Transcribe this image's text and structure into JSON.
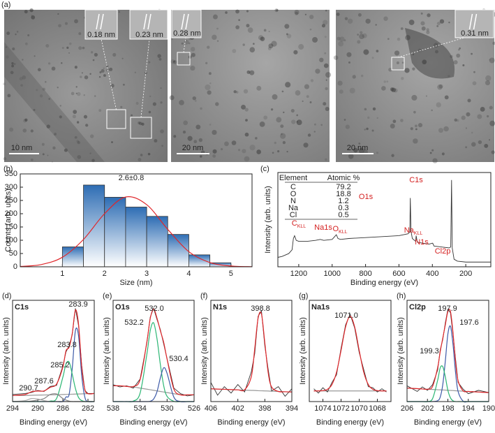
{
  "figure_a": {
    "label": "(a)",
    "scale_bars": [
      "10 nm",
      "20 nm",
      "20 nm"
    ],
    "lattice_spacings": [
      "0.18 nm",
      "0.23 nm",
      "0.28 nm",
      "0.31 nm"
    ]
  },
  "chart_data": [
    {
      "type": "histogram",
      "panel_label": "(b)",
      "xlabel": "Size (nm)",
      "ylabel": "Counts (arb. units)",
      "bins": [
        1,
        1.5,
        2,
        2.5,
        3,
        3.5,
        4,
        4.5,
        5
      ],
      "values": [
        75,
        308,
        262,
        225,
        190,
        122,
        45,
        15
      ],
      "color": "#2e6db4",
      "xlim": [
        0,
        5.5
      ],
      "xticks": [
        1,
        2,
        3,
        4,
        5
      ],
      "ylim": [
        0,
        350
      ],
      "yticks": [
        0,
        50,
        100,
        150,
        200,
        250,
        300,
        350
      ],
      "fit": {
        "label": "2.6±0.8",
        "color": "#e0262a",
        "x": [
          0,
          0.5,
          1,
          1.5,
          2,
          2.5,
          3,
          3.5,
          4,
          4.5,
          5,
          5.5
        ],
        "values": [
          1.3,
          8.4,
          36,
          103,
          200,
          263,
          234,
          141,
          57,
          16,
          3,
          0.4
        ]
      }
    },
    {
      "type": "line",
      "panel_label": "(c)",
      "xlabel": "Binding energy (eV)",
      "ylabel": "Intensity (arb. units)",
      "xlim": [
        1325,
        50
      ],
      "xticks": [
        1200,
        1000,
        800,
        600,
        400,
        200
      ],
      "ylim": [
        0,
        100
      ],
      "x": [
        1325,
        1300,
        1260,
        1240,
        1232,
        1225,
        1215,
        1200,
        1150,
        1100,
        1071,
        1050,
        1000,
        985,
        975,
        965,
        950,
        900,
        800,
        700,
        600,
        545,
        535,
        532,
        528,
        520,
        500,
        497,
        490,
        420,
        400,
        398,
        390,
        300,
        290,
        285,
        281,
        270,
        250,
        200,
        100,
        50
      ],
      "series": [
        {
          "color": "#333333",
          "values": [
            10,
            11,
            14,
            18,
            30,
            33,
            28,
            27,
            27,
            28,
            29,
            28,
            29,
            32,
            34,
            30,
            29,
            30,
            31,
            32,
            33,
            35,
            37,
            73,
            38,
            30,
            27,
            33,
            26,
            24,
            25,
            25,
            22,
            20,
            21,
            92,
            20,
            8,
            6,
            5,
            5,
            5
          ]
        }
      ],
      "annotation_color": "#d42020",
      "annotations": [
        {
          "text": "C1s"
        },
        {
          "text": "O1s"
        },
        {
          "text": "Na1s"
        },
        {
          "text": "N1s"
        },
        {
          "text": "Cl2p"
        },
        {
          "text": "C",
          "sub": "KLL"
        },
        {
          "text": "O",
          "sub": "KLL"
        },
        {
          "text": "Na",
          "sub": "KLL"
        }
      ],
      "table": {
        "header": [
          "Element",
          "Atomic %"
        ],
        "rows": [
          [
            "C",
            "79.2"
          ],
          [
            "O",
            "18.8"
          ],
          [
            "N",
            "1.2"
          ],
          [
            "Na",
            "0.3"
          ],
          [
            "Cl",
            "0.5"
          ]
        ]
      }
    },
    {
      "type": "line",
      "panel_label": "(d)",
      "title": "C1s",
      "xlabel": "Binding energy (eV)",
      "ylabel": "Intensity (arb. units)",
      "xlim": [
        294,
        281
      ],
      "xticks": [
        294,
        290,
        286,
        282
      ],
      "ylim": [
        0,
        100
      ],
      "x": [
        294,
        292,
        291,
        290,
        289,
        288,
        287,
        286,
        285.5,
        285,
        284.5,
        284,
        283.5,
        283,
        282.5,
        282,
        281
      ],
      "series": [
        {
          "color": "#999999",
          "values": [
            6,
            6,
            6.2,
            6.4,
            6.5,
            6.6,
            6.8,
            7,
            7.1,
            7.2,
            7.3,
            7.4,
            7.5,
            7.6,
            7.7,
            7.8,
            8
          ]
        },
        {
          "color": "#3d5aa8",
          "values": [
            0,
            0,
            0,
            0,
            0,
            0,
            0,
            0,
            4.5,
            7,
            33,
            70,
            65,
            26,
            4.5,
            0,
            0
          ]
        },
        {
          "color": "#2bb673",
          "values": [
            0,
            0,
            0,
            0,
            0,
            0.5,
            3,
            24,
            37,
            39,
            27,
            13,
            4,
            1,
            0,
            0,
            0
          ]
        },
        {
          "color": "#888888",
          "values": [
            0,
            0,
            0.5,
            1.5,
            3,
            7,
            7.5,
            3,
            1.5,
            0.5,
            0,
            0,
            0,
            0,
            0,
            0,
            0
          ]
        },
        {
          "color": "#aaaaaa",
          "values": [
            0,
            1,
            3,
            2.5,
            1,
            0,
            0,
            0,
            0,
            0,
            0,
            0,
            0,
            0,
            0,
            0,
            0
          ]
        },
        {
          "color": "#333333",
          "values": [
            7,
            8,
            9,
            11,
            10,
            15,
            16,
            35,
            49,
            55,
            66,
            92,
            75,
            36,
            11,
            8,
            8
          ]
        },
        {
          "color": "#e0262a",
          "values": [
            6,
            7,
            9.7,
            10.4,
            10.5,
            14.1,
            17.3,
            34,
            50.1,
            53.7,
            67.3,
            90.4,
            76.5,
            34.6,
            12.2,
            7.8,
            8
          ]
        }
      ],
      "annotations": [
        "283.9",
        "283.8",
        "285.2",
        "287.6",
        "290.7"
      ]
    },
    {
      "type": "line",
      "panel_label": "(e)",
      "title": "O1s",
      "xlabel": "Binding energy (eV)",
      "ylabel": "Intensity (arb. units)",
      "xlim": [
        538,
        526
      ],
      "xticks": [
        538,
        534,
        530,
        526
      ],
      "ylim": [
        0,
        90
      ],
      "x": [
        538,
        537,
        536,
        535,
        534,
        533,
        532.5,
        532,
        531.5,
        531,
        530.5,
        530,
        529,
        528,
        527,
        526
      ],
      "series": [
        {
          "color": "#999999",
          "values": [
            14,
            14,
            13.5,
            13,
            12,
            11,
            10.5,
            10,
            9.5,
            9,
            8.5,
            8,
            7,
            6,
            6,
            6
          ]
        },
        {
          "color": "#2bb673",
          "values": [
            0,
            0,
            0,
            0.4,
            7.5,
            42,
            63,
            70,
            56,
            33,
            14,
            4.6,
            0.2,
            0,
            0,
            0
          ]
        },
        {
          "color": "#3d5aa8",
          "values": [
            0,
            0,
            0,
            0,
            0,
            0,
            0.3,
            2.2,
            8.7,
            21,
            30,
            25,
            4,
            0,
            0,
            0
          ]
        },
        {
          "color": "#333333",
          "values": [
            15,
            13,
            14,
            12,
            20,
            52,
            75,
            83,
            73,
            64,
            51,
            38,
            12,
            7,
            5,
            6
          ]
        },
        {
          "color": "#e0262a",
          "values": [
            14,
            14,
            13.5,
            13.4,
            19.5,
            53,
            73.8,
            82.2,
            74.2,
            63,
            52.5,
            37.6,
            11.2,
            6,
            6,
            6
          ]
        }
      ],
      "annotations": [
        "532.0",
        "532.2",
        "530.4"
      ]
    },
    {
      "type": "line",
      "panel_label": "(f)",
      "title": "N1s",
      "xlabel": "Binding energy (eV)",
      "ylabel": "Intensity (arb. units)",
      "xlim": [
        406,
        394
      ],
      "xticks": [
        406,
        402,
        398,
        394
      ],
      "ylim": [
        0,
        95
      ],
      "x": [
        406,
        405,
        404,
        403,
        402,
        401,
        400,
        399.5,
        399,
        398.5,
        398,
        397.5,
        397,
        396,
        395,
        394
      ],
      "series": [
        {
          "color": "#999999",
          "values": [
            12,
            11.7,
            11.5,
            11.2,
            11,
            10.7,
            10.5,
            10.4,
            10.2,
            10.1,
            10,
            9.9,
            9.7,
            9.5,
            9.2,
            9
          ]
        },
        {
          "color": "#333333",
          "values": [
            18,
            6,
            14,
            8,
            16,
            9,
            28,
            45,
            80,
            85,
            52,
            30,
            10,
            14,
            5,
            12
          ]
        },
        {
          "color": "#e0262a",
          "values": [
            12,
            11.7,
            11.5,
            11.2,
            11,
            11,
            23.5,
            49.4,
            78.2,
            82.1,
            55,
            26.9,
            13.7,
            9.5,
            9.2,
            9
          ]
        }
      ],
      "annotations": [
        "398.8"
      ]
    },
    {
      "type": "line",
      "panel_label": "(g)",
      "title": "Na1s",
      "xlabel": "Binding energy (eV)",
      "ylabel": "Intensity (arb. units)",
      "xlim": [
        1075.5,
        1066.5
      ],
      "xticks": [
        1074,
        1072,
        1070,
        1068
      ],
      "ylim": [
        0,
        95
      ],
      "x": [
        1075,
        1074.5,
        1074,
        1073.5,
        1073,
        1072.5,
        1072,
        1071.5,
        1071,
        1070.5,
        1070,
        1069.5,
        1069,
        1068.5,
        1068,
        1067.5,
        1067
      ],
      "series": [
        {
          "color": "#999999",
          "values": [
            10,
            10,
            10,
            10,
            10,
            10,
            10,
            10,
            10,
            10,
            10,
            10,
            10,
            10,
            10,
            10,
            10
          ]
        },
        {
          "color": "#333333",
          "values": [
            12,
            8,
            13,
            9,
            18,
            25,
            50,
            72,
            82,
            69,
            46,
            30,
            14,
            13,
            9,
            12,
            9
          ]
        },
        {
          "color": "#e0262a",
          "values": [
            10,
            10,
            10.3,
            11.5,
            16,
            27.5,
            48,
            70,
            80,
            70,
            48,
            27.5,
            16,
            11.5,
            10.3,
            10,
            10
          ]
        }
      ],
      "annotations": [
        "1071.0"
      ]
    },
    {
      "type": "line",
      "panel_label": "(h)",
      "title": "Cl2p",
      "xlabel": "Binding energy (eV)",
      "ylabel": "Intensity (arb. units)",
      "xlim": [
        206,
        190
      ],
      "xticks": [
        206,
        202,
        198,
        194,
        190
      ],
      "ylim": [
        0,
        90
      ],
      "x": [
        206,
        204,
        203,
        202,
        201,
        200,
        199.5,
        199,
        198.5,
        198,
        197.5,
        197,
        196.5,
        196,
        195,
        194,
        192,
        190
      ],
      "series": [
        {
          "color": "#999999",
          "values": [
            12,
            11.5,
            11.2,
            11,
            10.8,
            10.5,
            10.4,
            10.3,
            10.2,
            10,
            9.9,
            9.8,
            9.6,
            9.5,
            9.2,
            9,
            8.5,
            8
          ]
        },
        {
          "color": "#3d5aa8",
          "values": [
            0,
            0,
            0,
            0,
            0,
            0.8,
            4,
            15,
            36,
            60,
            67,
            51,
            26,
            9,
            0.3,
            0,
            0,
            0
          ]
        },
        {
          "color": "#2bb673",
          "values": [
            0,
            0,
            0,
            0,
            2.6,
            19,
            30,
            31,
            22,
            10,
            3.3,
            0.7,
            0,
            0,
            0,
            0,
            0,
            0
          ]
        },
        {
          "color": "#333333",
          "values": [
            14,
            9,
            13,
            10,
            15,
            28,
            46,
            55,
            70,
            82,
            79,
            60,
            38,
            17,
            11,
            7,
            10,
            8
          ]
        },
        {
          "color": "#e0262a",
          "values": [
            12,
            11.5,
            11.2,
            11,
            13.4,
            30.3,
            44.4,
            56.3,
            68.2,
            80,
            80.2,
            61.5,
            35.6,
            18.5,
            9.5,
            9,
            8.5,
            8
          ]
        }
      ],
      "annotations": [
        "197.9",
        "197.6",
        "199.3"
      ]
    }
  ]
}
